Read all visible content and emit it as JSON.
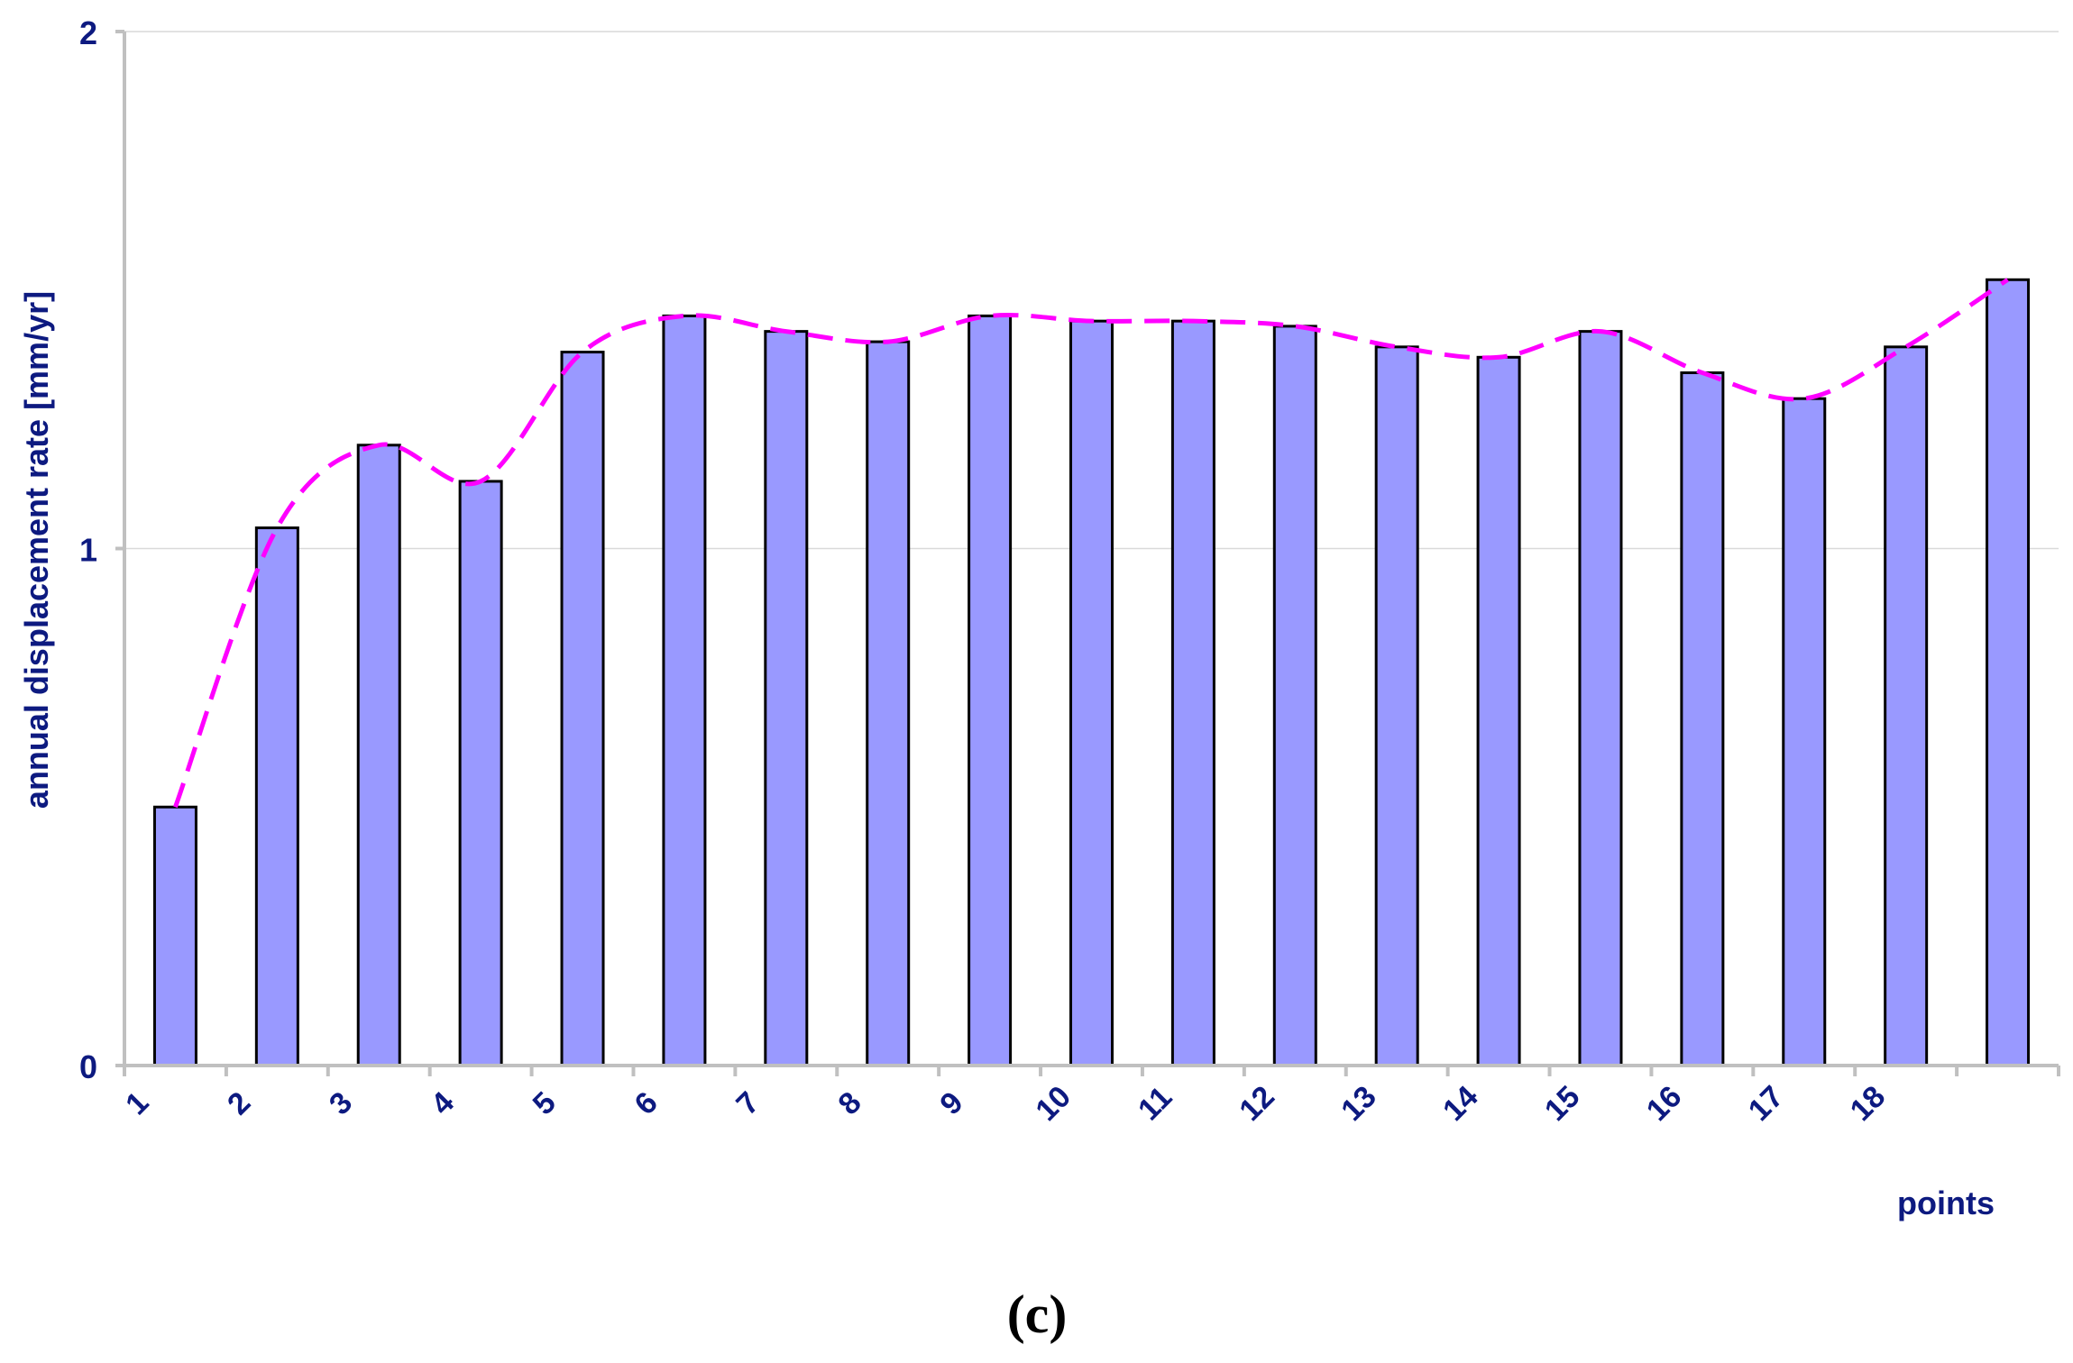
{
  "chart_data": {
    "type": "bar",
    "categories": [
      "1",
      "2",
      "3",
      "4",
      "5",
      "6",
      "7",
      "8",
      "9",
      "10",
      "11",
      "12",
      "13",
      "14",
      "15",
      "16",
      "17",
      "18",
      ""
    ],
    "series": [
      {
        "values": [
          0.5,
          1.04,
          1.2,
          1.13,
          1.38,
          1.45,
          1.42,
          1.4,
          1.45,
          1.44,
          1.44,
          1.43,
          1.39,
          1.37,
          1.42,
          1.34,
          1.29,
          1.39,
          1.52
        ]
      }
    ],
    "trendline": {
      "style": "dashed-smooth",
      "color": "#ff00ff"
    },
    "ylim": [
      0,
      2
    ],
    "yticks": [
      "0",
      "1",
      "2"
    ],
    "xlabel": "points",
    "ylabel": "annual displacement rate [mm/yr]",
    "caption": "(c)",
    "grid": "horizontal",
    "colors": {
      "bar_fill": "#9999ff",
      "bar_stroke": "#000000",
      "axis": "#c0c0c0",
      "grid": "#d9d9d9",
      "label": "#0d1a80"
    }
  }
}
